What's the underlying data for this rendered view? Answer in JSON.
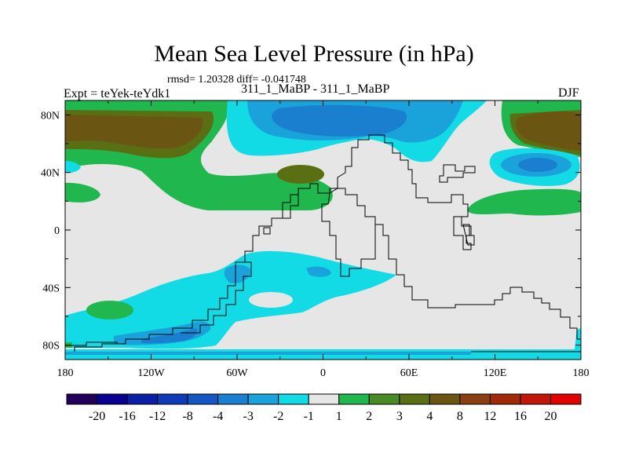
{
  "chart_data": {
    "type": "contour-map",
    "title": "Mean Sea Level Pressure (in hPa)",
    "stats_text": "rmsd= 1.20328 diff= -0.041748",
    "left_label": "Expt = teYek-teYdk1",
    "center_label": "311_1_MaBP - 311_1_MaBP",
    "right_label": "DJF",
    "x_ticks": [
      "180",
      "120W",
      "60W",
      "0",
      "60E",
      "120E",
      "180"
    ],
    "y_ticks": [
      "80N",
      "40N",
      "0",
      "40S",
      "80S"
    ],
    "xlim": [
      -180,
      180
    ],
    "ylim": [
      -90,
      90
    ],
    "colorbar": {
      "labels": [
        "-20",
        "-16",
        "-12",
        "-8",
        "-4",
        "-3",
        "-2",
        "-1",
        "1",
        "2",
        "3",
        "4",
        "8",
        "12",
        "16",
        "20"
      ],
      "colors": [
        "#22005a",
        "#080090",
        "#0a1fa5",
        "#0f3ab8",
        "#1457c4",
        "#1b7fd0",
        "#1aa2db",
        "#12dbe6",
        "#e6e6e6",
        "#20b84e",
        "#4a8a25",
        "#5a6e14",
        "#6a5612",
        "#8a4010",
        "#a02a08",
        "#c21608",
        "#e00000"
      ]
    },
    "regions": [
      {
        "name": "arctic-pacific-high",
        "level": "4 to 8",
        "lat": [
          45,
          80
        ],
        "lon": [
          -180,
          -120
        ]
      },
      {
        "name": "arctic-atlantic-low",
        "level": "-4 to -3",
        "lat": [
          55,
          80
        ],
        "lon": [
          -50,
          60
        ]
      },
      {
        "name": "east-asia-high",
        "level": "4 to 8",
        "lat": [
          55,
          80
        ],
        "lon": [
          125,
          180
        ]
      },
      {
        "name": "north-pacific-low",
        "level": "-4 to -3",
        "lat": [
          35,
          55
        ],
        "lon": [
          120,
          175
        ]
      },
      {
        "name": "southern-ocean-low",
        "level": "-2 to -1",
        "lat": [
          -90,
          -40
        ],
        "lon": [
          -180,
          20
        ]
      },
      {
        "name": "south-pacific-high",
        "level": "2 to 3",
        "lat": [
          -55,
          -45
        ],
        "lon": [
          -165,
          -140
        ]
      }
    ]
  }
}
